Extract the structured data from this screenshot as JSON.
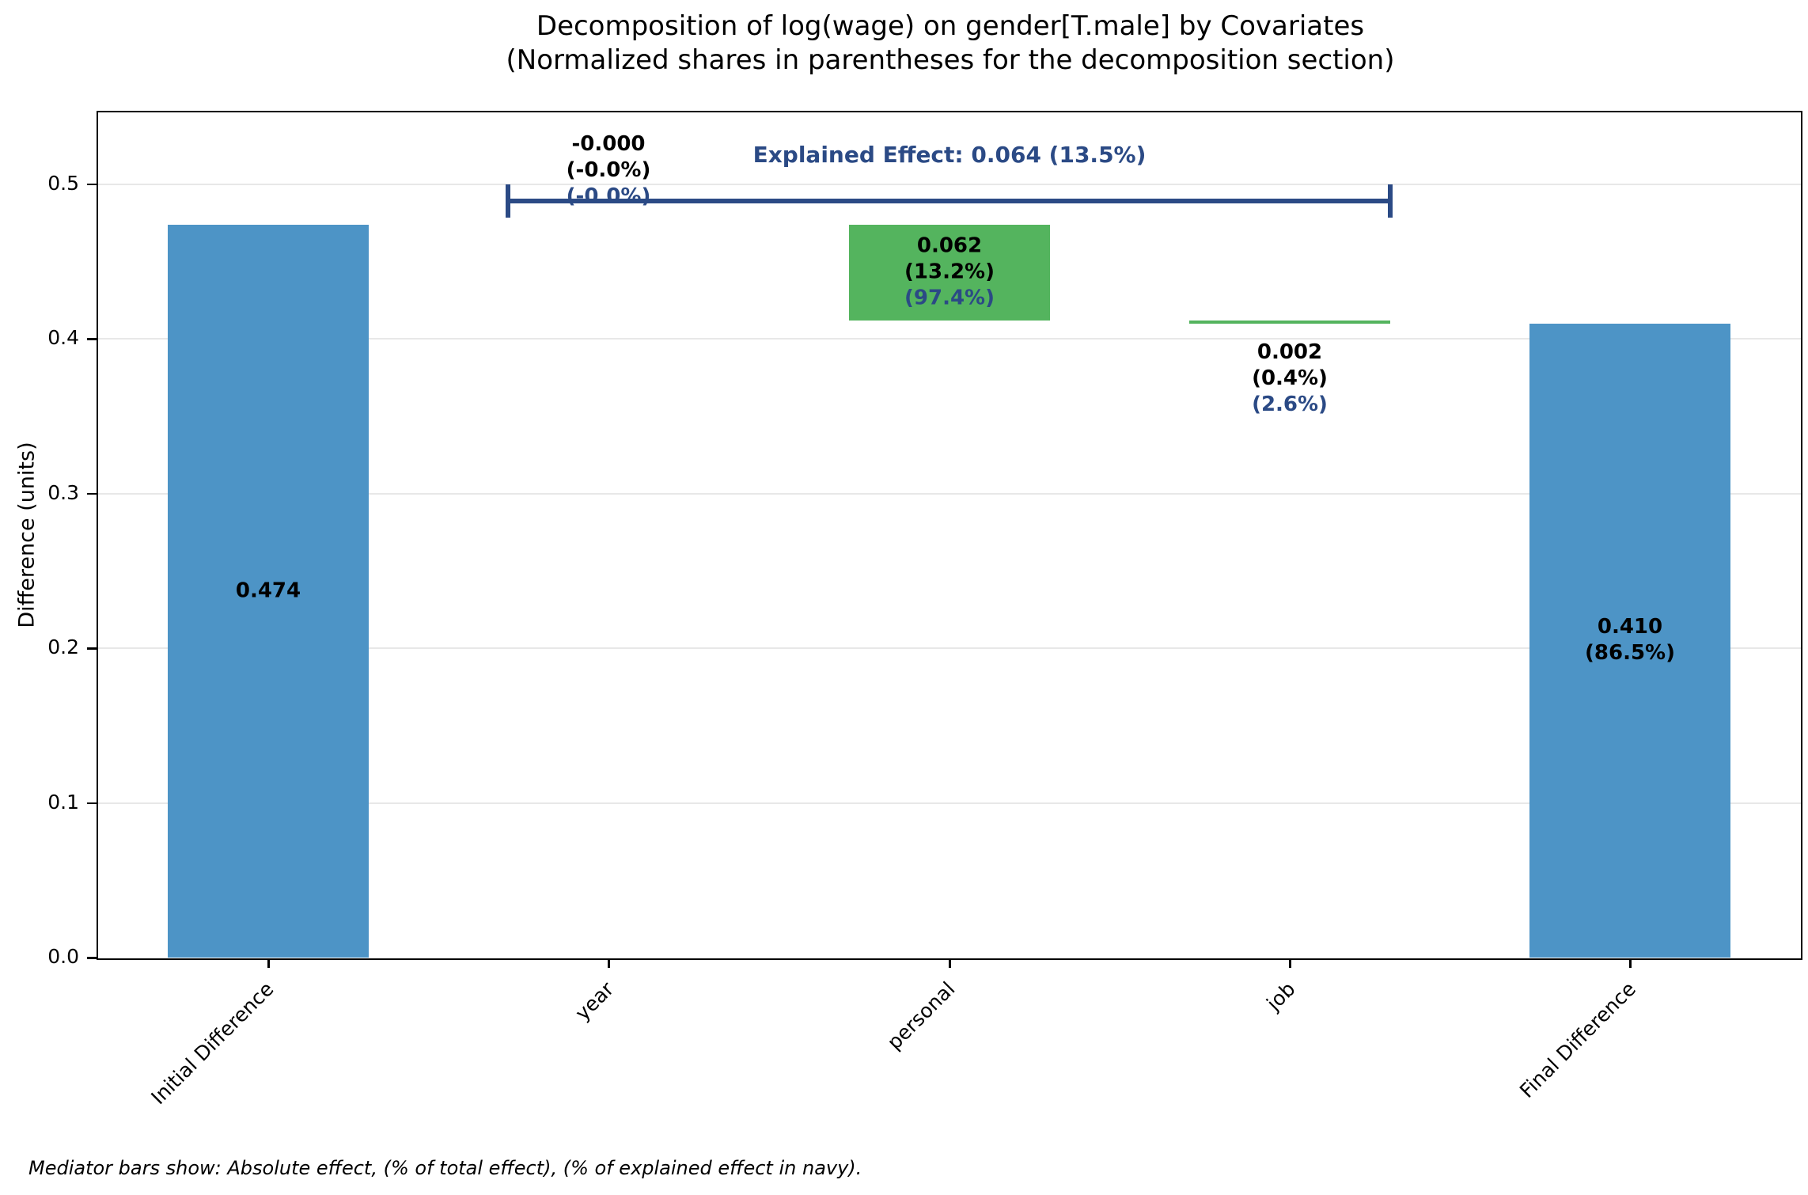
{
  "chart_data": {
    "type": "bar",
    "variant": "waterfall-decomposition",
    "title": "Decomposition of log(wage) on gender[T.male] by Covariates",
    "subtitle": "(Normalized shares in parentheses for the decomposition section)",
    "ylabel": "Difference (units)",
    "footer": "Mediator bars show: Absolute effect, (% of total effect), (% of explained effect in navy).",
    "ylim": [
      0,
      0.5465
    ],
    "grid": "horizontal",
    "legend": "none",
    "yticks": [
      {
        "value": 0.0,
        "label": "0.0"
      },
      {
        "value": 0.1,
        "label": "0.1"
      },
      {
        "value": 0.2,
        "label": "0.2"
      },
      {
        "value": 0.3,
        "label": "0.3"
      },
      {
        "value": 0.4,
        "label": "0.4"
      },
      {
        "value": 0.5,
        "label": "0.5"
      }
    ],
    "categories": [
      "Initial Difference",
      "year",
      "personal",
      "job",
      "Final Difference"
    ],
    "bars": [
      {
        "category": "Initial Difference",
        "role": "total",
        "color_key": "blue",
        "bottom": 0.0,
        "top": 0.474,
        "value": 0.474,
        "label_placement": "center",
        "value_labels": [
          {
            "text": "0.474",
            "color": "black"
          }
        ]
      },
      {
        "category": "year",
        "role": "mediator",
        "color_key": "green",
        "bottom": 0.474,
        "top": 0.474,
        "value": -0.0,
        "label_placement": "above",
        "value_labels": [
          {
            "text": "-0.000",
            "color": "black"
          },
          {
            "text": "(-0.0%)",
            "color": "black"
          },
          {
            "text": "(-0.0%)",
            "color": "navy"
          }
        ]
      },
      {
        "category": "personal",
        "role": "mediator",
        "color_key": "green",
        "bottom": 0.412,
        "top": 0.474,
        "value": 0.062,
        "label_placement": "center",
        "value_labels": [
          {
            "text": "0.062",
            "color": "black"
          },
          {
            "text": "(13.2%)",
            "color": "black"
          },
          {
            "text": "(97.4%)",
            "color": "navy"
          }
        ]
      },
      {
        "category": "job",
        "role": "mediator",
        "color_key": "green",
        "bottom": 0.41,
        "top": 0.412,
        "value": 0.002,
        "label_placement": "below",
        "value_labels": [
          {
            "text": "0.002",
            "color": "black"
          },
          {
            "text": "(0.4%)",
            "color": "black"
          },
          {
            "text": "(2.6%)",
            "color": "navy"
          }
        ]
      },
      {
        "category": "Final Difference",
        "role": "total",
        "color_key": "blue",
        "bottom": 0.0,
        "top": 0.41,
        "value": 0.41,
        "label_placement": "center",
        "value_labels": [
          {
            "text": "0.410",
            "color": "black"
          },
          {
            "text": "(86.5%)",
            "color": "black"
          }
        ]
      }
    ],
    "bracket": {
      "from_category": "year",
      "to_category": "job",
      "y": 0.489,
      "label": "Explained Effect: 0.064 (13.5%)"
    },
    "colors": {
      "blue": "#4d94c6",
      "green": "#54b45e",
      "navy": "#2b4a85",
      "grid": "#e8e8e8",
      "spine": "#000000",
      "black": "#000000"
    }
  }
}
